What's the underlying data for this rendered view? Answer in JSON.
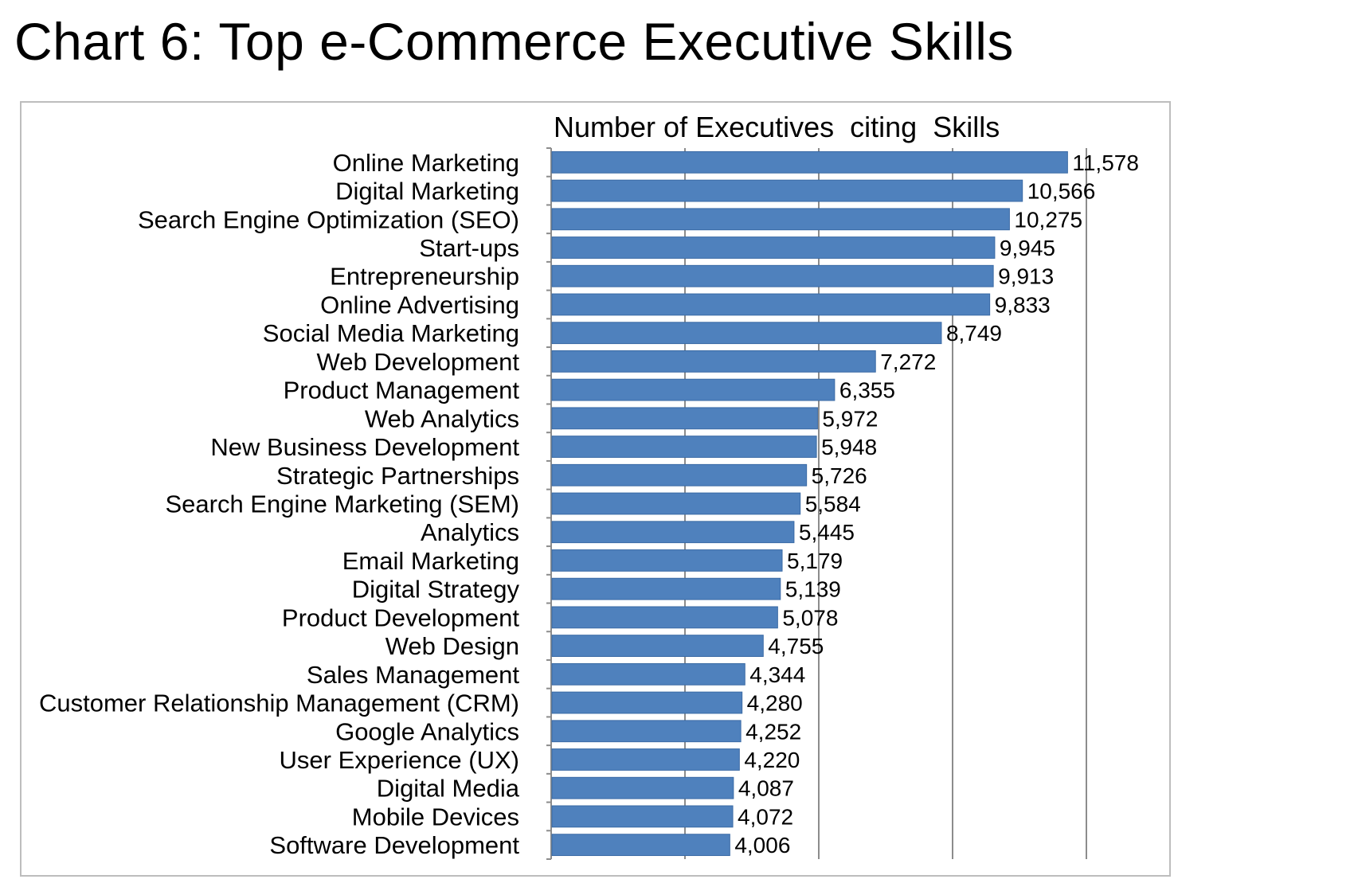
{
  "page": {
    "title": "Chart 6: Top e-Commerce Executive Skills"
  },
  "chart_data": {
    "type": "bar",
    "orientation": "horizontal",
    "title": "Number of Executives  citing  Skills",
    "xlabel": "",
    "ylabel": "",
    "xlim": [
      0,
      12000
    ],
    "grid": true,
    "colors": {
      "bar": "#4f81bd",
      "bar_edge": "#3a6aa5",
      "grid": "#8c8c8c",
      "frame": "#bdbdbd"
    },
    "categories": [
      "Online Marketing",
      "Digital Marketing",
      "Search Engine Optimization (SEO)",
      "Start-ups",
      "Entrepreneurship",
      "Online Advertising",
      "Social Media Marketing",
      "Web Development",
      "Product Management",
      "Web Analytics",
      "New Business Development",
      "Strategic Partnerships",
      "Search Engine Marketing (SEM)",
      "Analytics",
      "Email Marketing",
      "Digital Strategy",
      "Product Development",
      "Web Design",
      "Sales Management",
      "Customer Relationship Management (CRM)",
      "Google Analytics",
      "User Experience (UX)",
      "Digital Media",
      "Mobile Devices",
      "Software Development"
    ],
    "values": [
      11578,
      10566,
      10275,
      9945,
      9913,
      9833,
      8749,
      7272,
      6355,
      5972,
      5948,
      5726,
      5584,
      5445,
      5179,
      5139,
      5078,
      4755,
      4344,
      4280,
      4252,
      4220,
      4087,
      4072,
      4006
    ],
    "value_labels": [
      "11,578",
      "10,566",
      "10,275",
      "9,945",
      "9,913",
      "9,833",
      "8,749",
      "7,272",
      "6,355",
      "5,972",
      "5,948",
      "5,726",
      "5,584",
      "5,445",
      "5,179",
      "5,139",
      "5,078",
      "4,755",
      "4,344",
      "4,280",
      "4,252",
      "4,220",
      "4,087",
      "4,072",
      "4,006"
    ]
  }
}
